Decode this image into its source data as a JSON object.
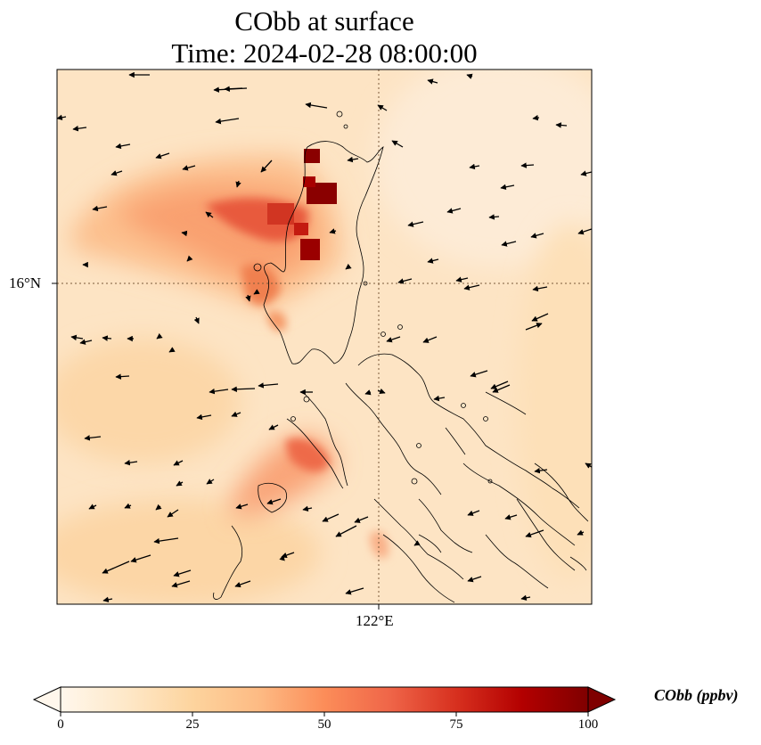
{
  "title_line1": "CObb at surface",
  "title_line2": "Time: 2024-02-28 08:00:00",
  "lat_label": "16°N",
  "lon_label": "122°E",
  "colorbar": {
    "label": "CObb (ppbv)",
    "ticks": [
      "0",
      "25",
      "50",
      "75",
      "100"
    ],
    "min": 0,
    "max": 100,
    "colormap": [
      "#fff7ec",
      "#fee8c8",
      "#fdd49e",
      "#fdbb84",
      "#fc8d59",
      "#ef6548",
      "#d7301f",
      "#b30000",
      "#7f0000"
    ]
  },
  "colors": {
    "background_field": "#fde6c8",
    "coastline": "#000000",
    "gridline": "#7a5a3a",
    "arrow": "#000000"
  },
  "plume_regions": [
    {
      "name": "north-plume",
      "level": 55
    },
    {
      "name": "hotspot-1",
      "level": 100
    },
    {
      "name": "hotspot-2",
      "level": 95
    },
    {
      "name": "hotspot-3",
      "level": 90
    },
    {
      "name": "south-plume",
      "level": 50
    }
  ],
  "wind_vector_icon": "arrow-icon"
}
